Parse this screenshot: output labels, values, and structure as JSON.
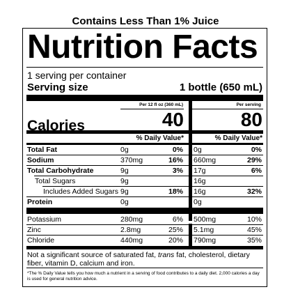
{
  "header": "Contains Less Than 1% Juice",
  "title": "Nutrition Facts",
  "servings_per_container": "1 serving per container",
  "serving_size_label": "Serving size",
  "serving_size_value": "1 bottle (650 mL)",
  "col1_header": "Per 12 fl oz (360 mL)",
  "col2_header": "Per serving",
  "calories_label": "Calories",
  "calories_col1": "40",
  "calories_col2": "80",
  "dv_header": "% Daily Value*",
  "rows": [
    {
      "name": "Total Fat",
      "v1": "0g",
      "p1": "0%",
      "v2": "0g",
      "p2": "0%"
    },
    {
      "name": "Sodium",
      "v1": "370mg",
      "p1": "16%",
      "v2": "660mg",
      "p2": "29%"
    },
    {
      "name": "Total Carbohydrate",
      "v1": "9g",
      "p1": "3%",
      "v2": "17g",
      "p2": "6%"
    },
    {
      "name": "Total Sugars",
      "v1": "9g",
      "p1": "",
      "v2": "16g",
      "p2": ""
    },
    {
      "name": "Includes Added Sugars",
      "v1": "9g",
      "p1": "18%",
      "v2": "16g",
      "p2": "32%"
    },
    {
      "name": "Protein",
      "v1": "0g",
      "p1": "",
      "v2": "0g",
      "p2": ""
    },
    {
      "name": "Potassium",
      "v1": "280mg",
      "p1": "6%",
      "v2": "500mg",
      "p2": "10%"
    },
    {
      "name": "Zinc",
      "v1": "2.8mg",
      "p1": "25%",
      "v2": "5.1mg",
      "p2": "45%"
    },
    {
      "name": "Chloride",
      "v1": "440mg",
      "p1": "20%",
      "v2": "790mg",
      "p2": "35%"
    }
  ],
  "footnote_not_significant_pre": "Not a significant source of saturated fat, ",
  "footnote_not_significant_trans": "trans",
  "footnote_not_significant_post": " fat, cholesterol, dietary fiber, vitamin D, calcium and iron.",
  "footnote_dv": "*The % Daily Value tells you how much a nutrient in a serving of food contributes to a daily diet. 2,000 calories a day is used for general nutrition advice."
}
